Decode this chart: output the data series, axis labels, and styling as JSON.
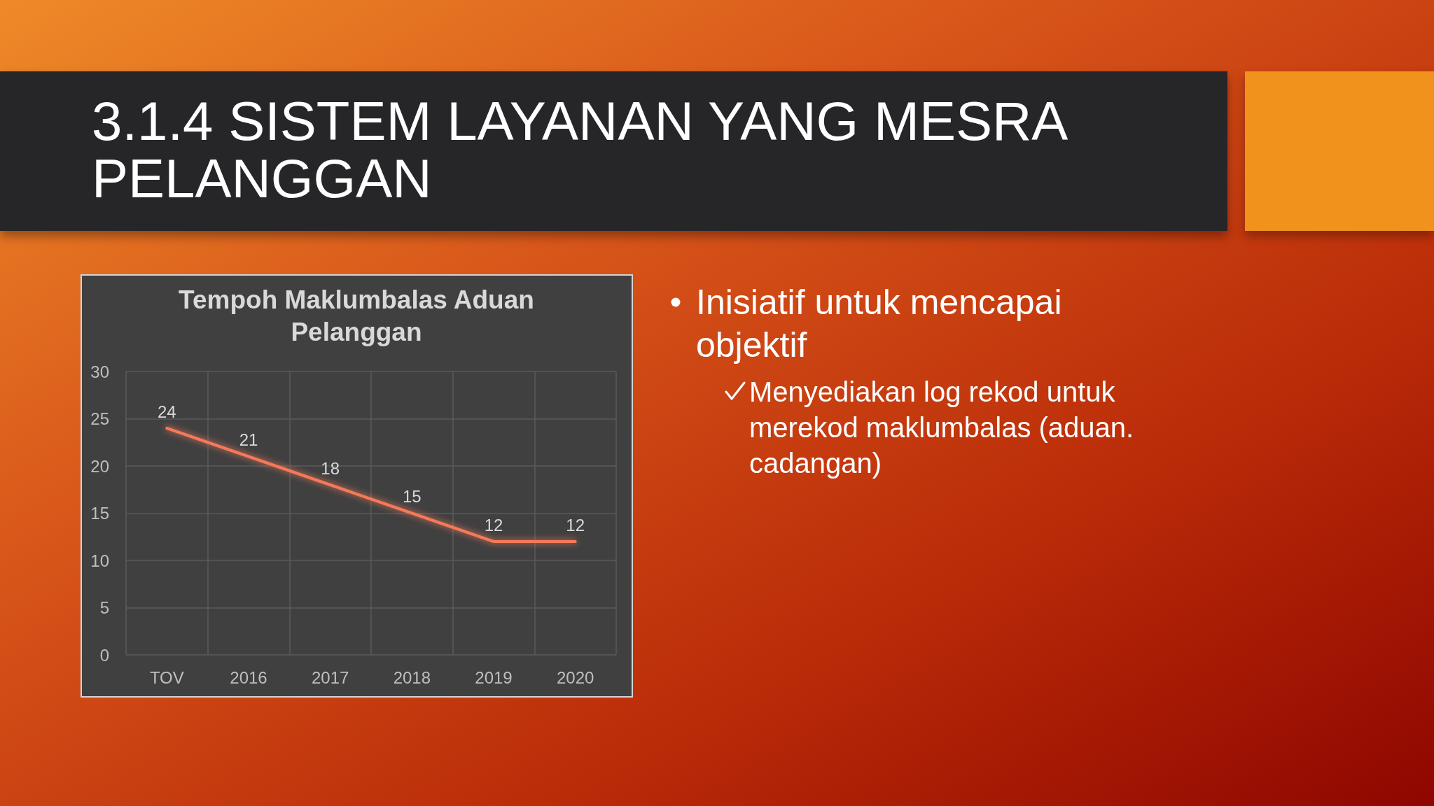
{
  "chart_data": {
    "type": "line",
    "title": "Tempoh Maklumbalas Aduan Pelanggan",
    "categories": [
      "TOV",
      "2016",
      "2017",
      "2018",
      "2019",
      "2020"
    ],
    "values": [
      24,
      21,
      18,
      15,
      12,
      12
    ],
    "color": "#f47a5a",
    "ylim": [
      0,
      30
    ],
    "yticks": [
      0,
      5,
      10,
      15,
      20,
      25,
      30
    ],
    "grid": true,
    "data_labels": true,
    "marker": "none",
    "annotations": [
      "3.1.4 SISTEM LAYANAN YANG MESRA PELANGGAN",
      "Inisiatif untuk mencapai objektif",
      "Menyediakan log rekod untuk merekod maklumbalas (aduan. cadangan)"
    ]
  }
}
